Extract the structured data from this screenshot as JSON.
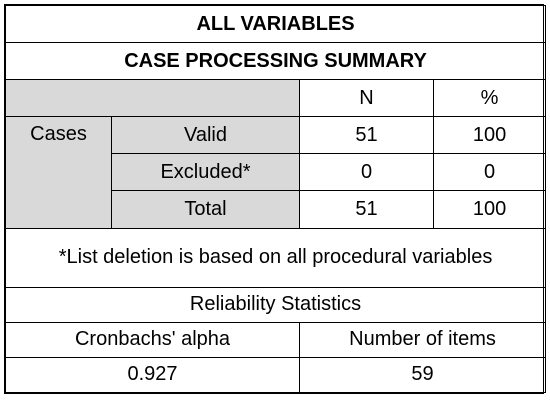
{
  "title": "ALL VARIABLES",
  "subtitle": "CASE PROCESSING SUMMARY",
  "columns": {
    "n": "N",
    "pct": "%"
  },
  "cases_label": "Cases",
  "rows": [
    {
      "label": "Valid",
      "n": "51",
      "pct": "100"
    },
    {
      "label": "Excluded*",
      "n": "0",
      "pct": "0"
    },
    {
      "label": "Total",
      "n": "51",
      "pct": "100"
    }
  ],
  "footnote": "*List deletion is based on all procedural variables",
  "reliability": {
    "heading": "Reliability Statistics",
    "alpha_label": "Cronbachs' alpha",
    "items_label": "Number of items",
    "alpha_value": "0.927",
    "items_value": "59"
  },
  "colors": {
    "header_grey": "#d9d9d9",
    "border": "#000000"
  }
}
